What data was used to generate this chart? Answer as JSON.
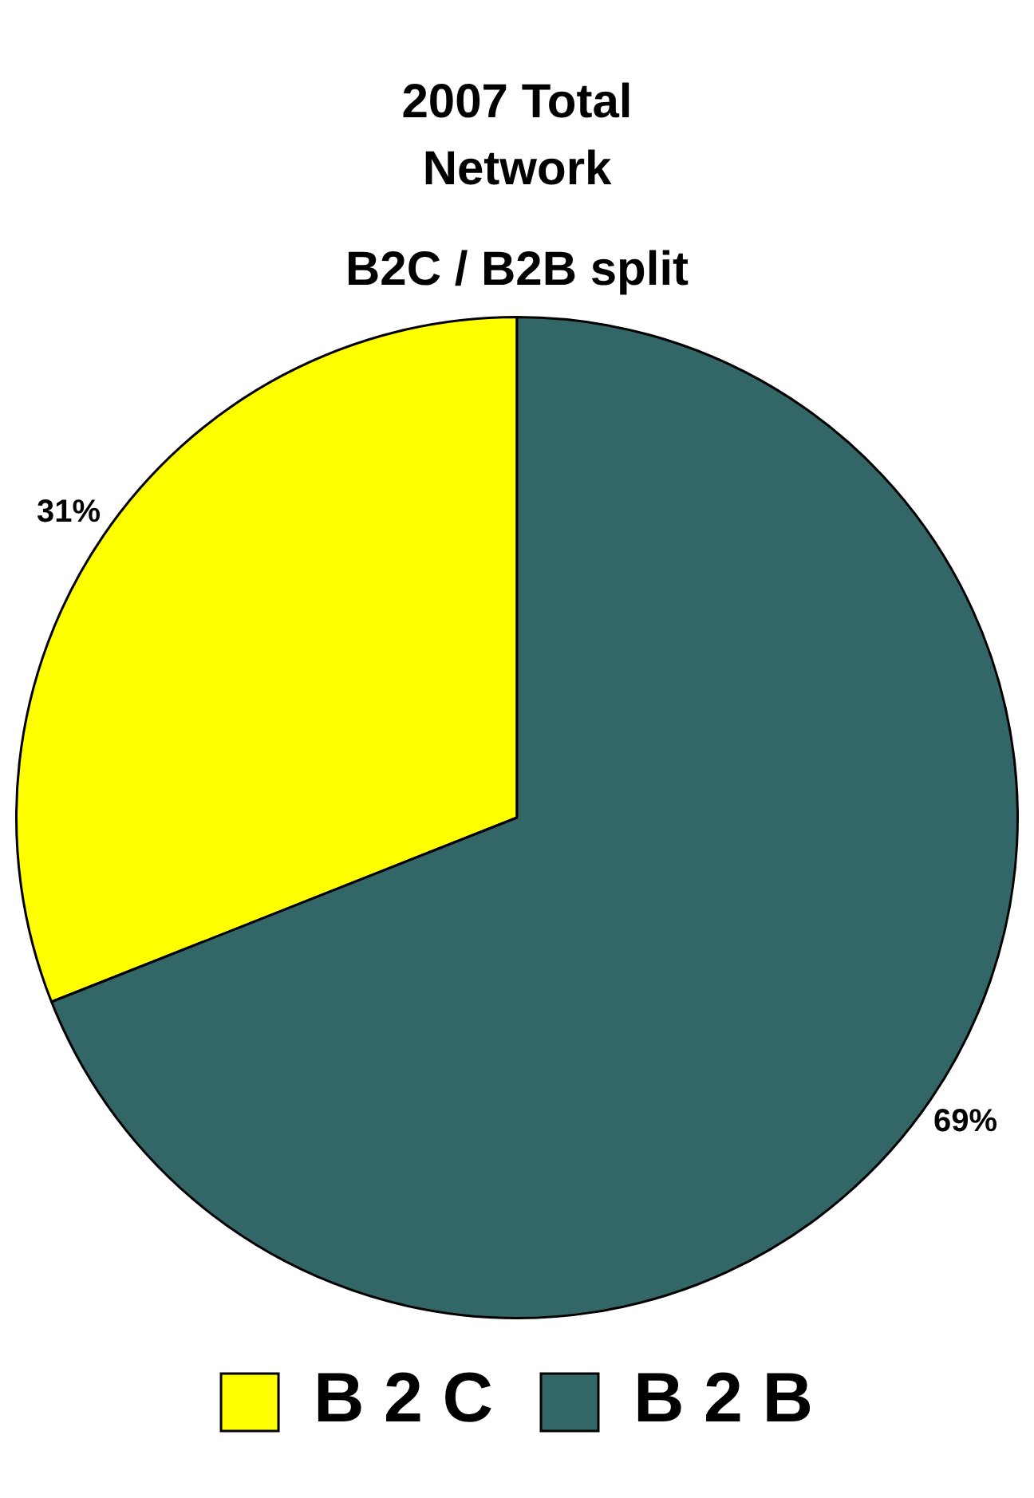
{
  "chart_data": {
    "type": "pie",
    "title": "2007 Total Network",
    "subtitle": "B2C / B2B split",
    "categories": [
      "B 2 C",
      "B 2 B"
    ],
    "values": [
      31,
      69
    ],
    "colors": [
      "#ffff00",
      "#336666"
    ],
    "value_labels": [
      "31%",
      "69%"
    ],
    "legend": "bottom"
  }
}
